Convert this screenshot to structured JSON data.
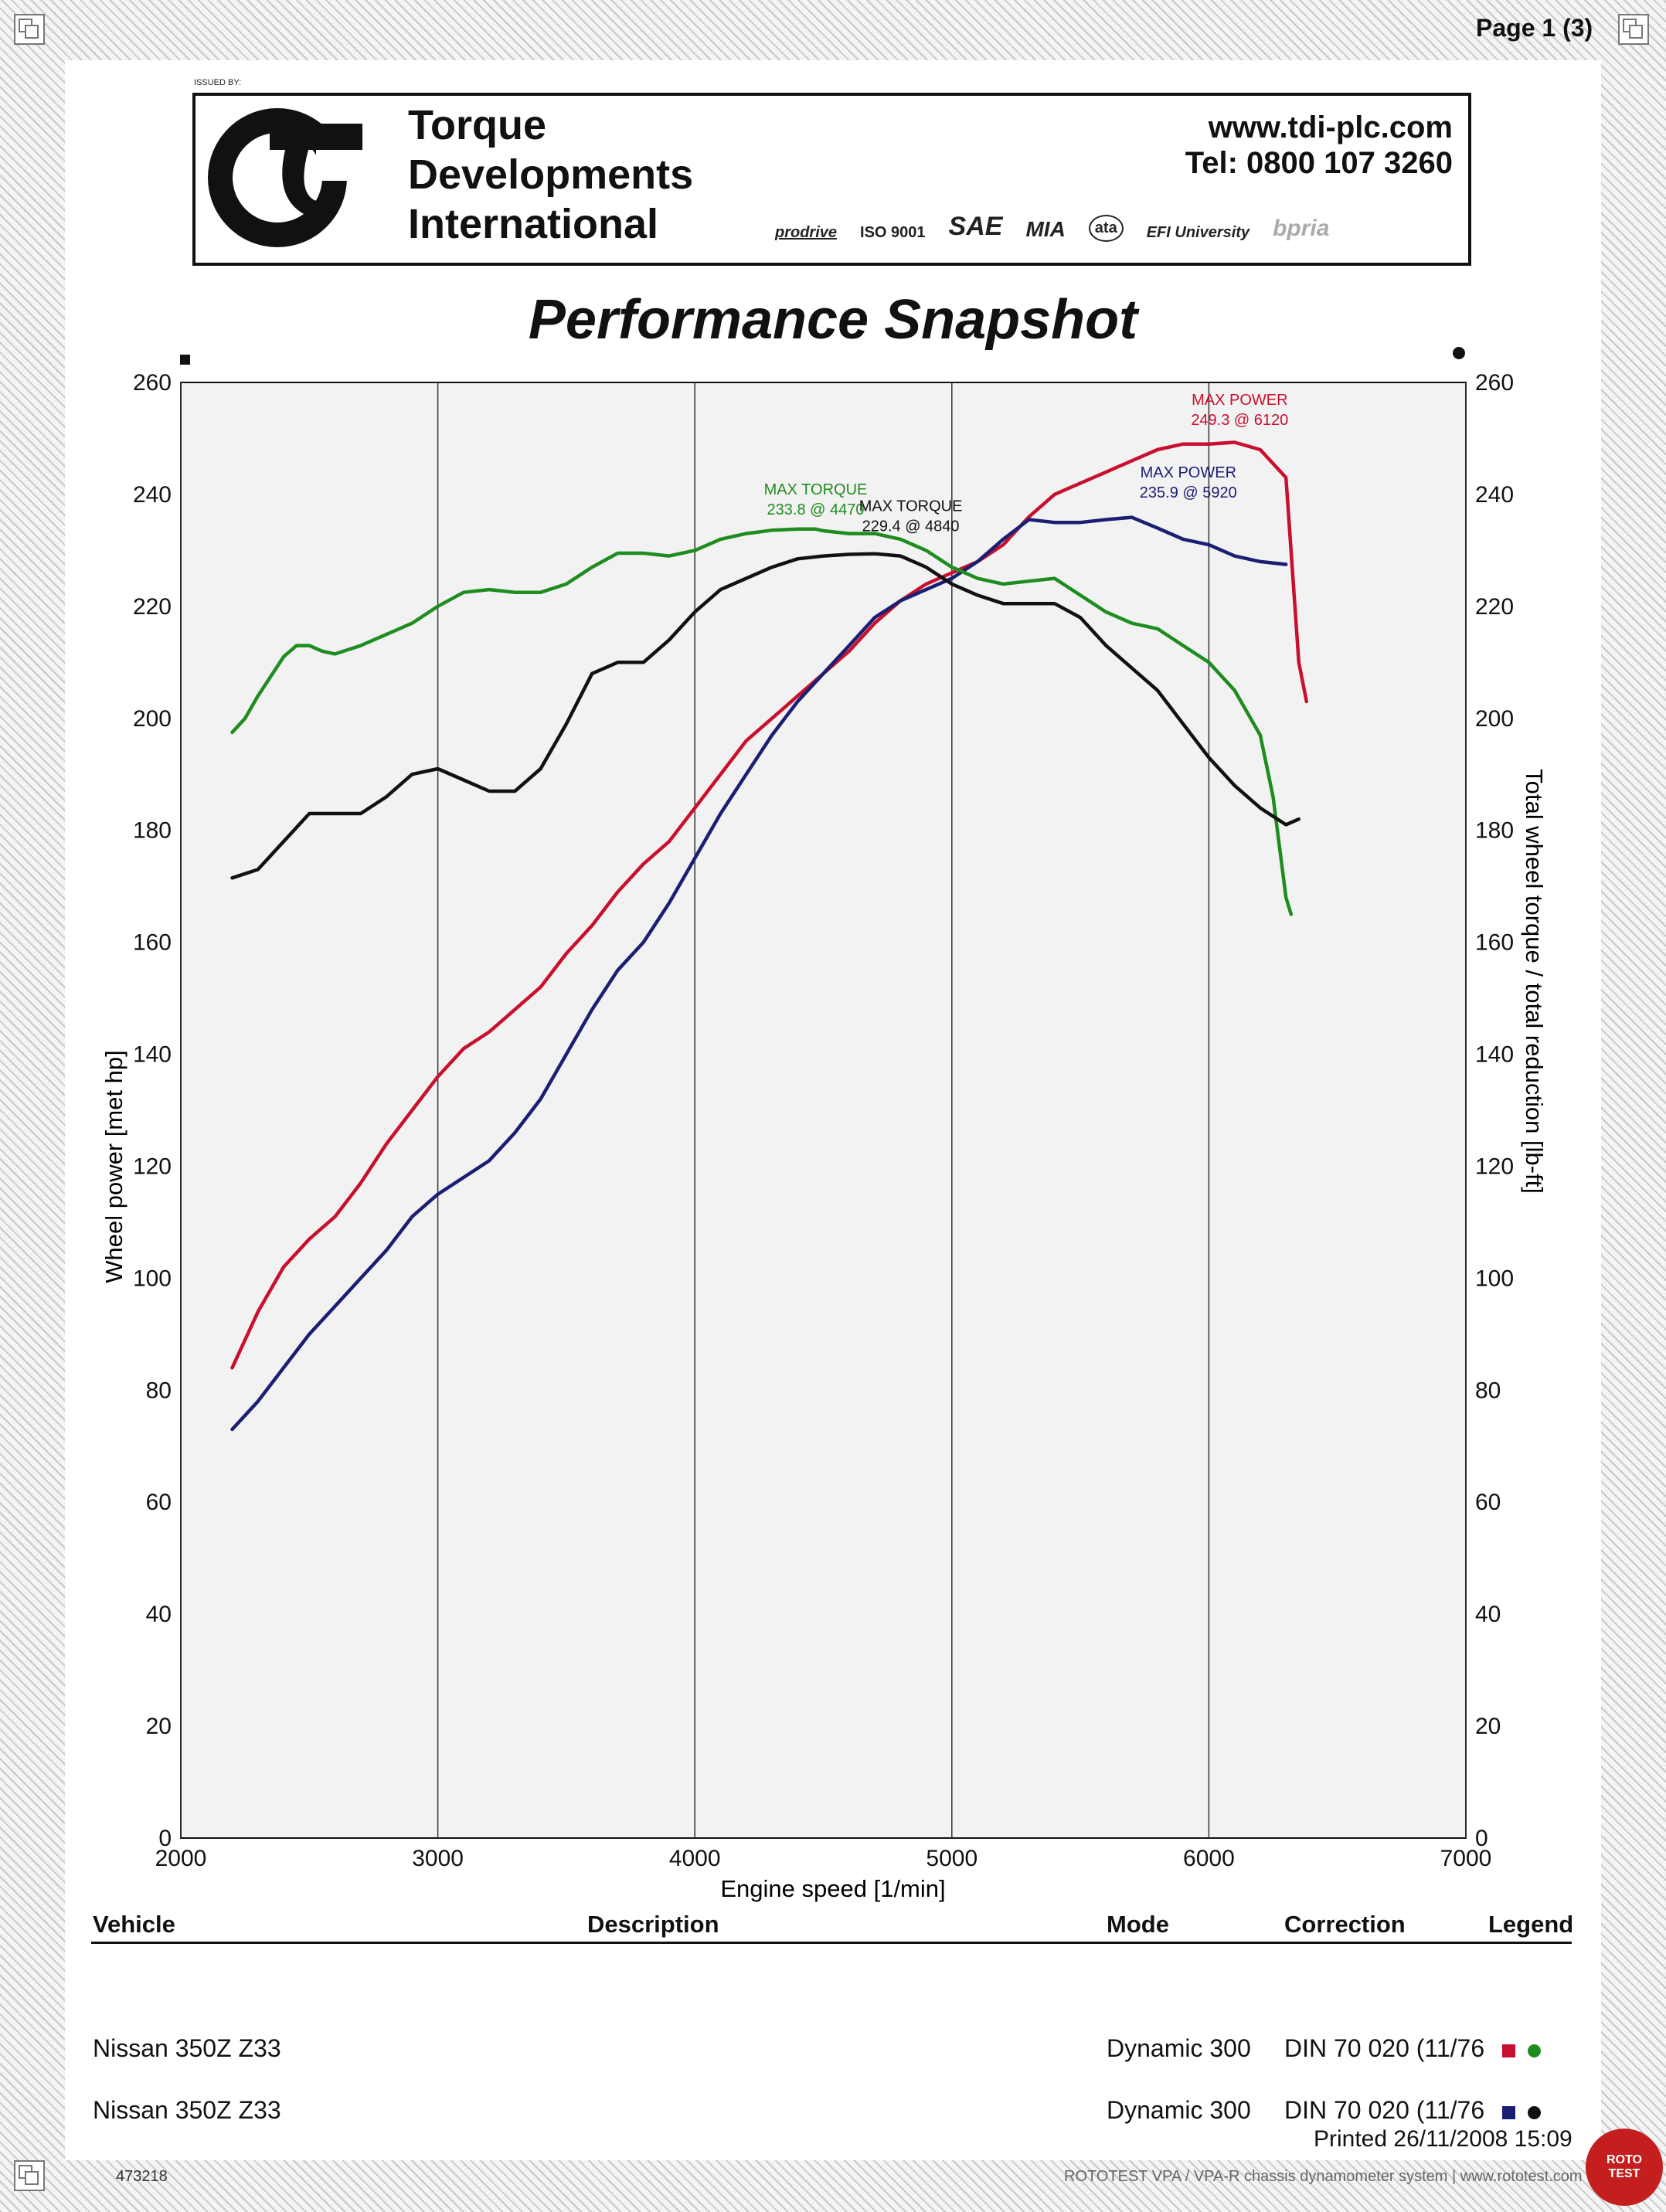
{
  "page_label": "Page 1 (3)",
  "header": {
    "issued_by": "ISSUED BY:",
    "company_lines": [
      "Torque",
      "Developments",
      "International"
    ],
    "website": "www.tdi-plc.com",
    "phone": "Tel: 0800 107 3260",
    "certifications": [
      "prodrive",
      "ISO 9001",
      "SAE",
      "MIA",
      "ata",
      "EFI University",
      "bpria"
    ]
  },
  "title": "Performance Snapshot",
  "colors": {
    "red": "#c8102e",
    "navy": "#1a1f73",
    "green": "#1e8c1e",
    "black": "#111111"
  },
  "chart_data": {
    "type": "line",
    "title": "Performance Snapshot",
    "xlabel": "Engine speed [1/min]",
    "ylabel_left": "Wheel power [met hp]",
    "ylabel_right": "Total wheel torque / total reduction [lb-ft]",
    "xlim": [
      2000,
      7000
    ],
    "ylim": [
      0,
      260
    ],
    "x_ticks": [
      "2000",
      "3000",
      "4000",
      "5000",
      "6000",
      "7000"
    ],
    "y_ticks": [
      "0",
      "20",
      "40",
      "60",
      "80",
      "100",
      "120",
      "140",
      "160",
      "180",
      "200",
      "220",
      "240",
      "260"
    ],
    "grid": true,
    "series": [
      {
        "color": "#c8102e",
        "points": [
          [
            2200,
            84
          ],
          [
            2300,
            94
          ],
          [
            2400,
            102
          ],
          [
            2500,
            107
          ],
          [
            2600,
            111
          ],
          [
            2700,
            117
          ],
          [
            2800,
            124
          ],
          [
            2900,
            130
          ],
          [
            3000,
            136
          ],
          [
            3100,
            141
          ],
          [
            3200,
            144
          ],
          [
            3300,
            148
          ],
          [
            3400,
            152
          ],
          [
            3500,
            158
          ],
          [
            3600,
            163
          ],
          [
            3700,
            169
          ],
          [
            3800,
            174
          ],
          [
            3900,
            178
          ],
          [
            4000,
            184
          ],
          [
            4100,
            190
          ],
          [
            4200,
            196
          ],
          [
            4300,
            200
          ],
          [
            4400,
            204
          ],
          [
            4500,
            208
          ],
          [
            4600,
            212
          ],
          [
            4700,
            217
          ],
          [
            4800,
            221
          ],
          [
            4900,
            224
          ],
          [
            5000,
            226
          ],
          [
            5100,
            228
          ],
          [
            5200,
            231
          ],
          [
            5300,
            236
          ],
          [
            5400,
            240
          ],
          [
            5500,
            242
          ],
          [
            5600,
            244
          ],
          [
            5700,
            246
          ],
          [
            5800,
            248
          ],
          [
            5900,
            249
          ],
          [
            6000,
            249
          ],
          [
            6100,
            249.3
          ],
          [
            6200,
            248
          ],
          [
            6300,
            243
          ],
          [
            6350,
            210
          ],
          [
            6380,
            203
          ]
        ]
      },
      {
        "color": "#1a1f73",
        "points": [
          [
            2200,
            73
          ],
          [
            2300,
            78
          ],
          [
            2400,
            84
          ],
          [
            2500,
            90
          ],
          [
            2600,
            95
          ],
          [
            2700,
            100
          ],
          [
            2800,
            105
          ],
          [
            2900,
            111
          ],
          [
            3000,
            115
          ],
          [
            3100,
            118
          ],
          [
            3200,
            121
          ],
          [
            3300,
            126
          ],
          [
            3400,
            132
          ],
          [
            3500,
            140
          ],
          [
            3600,
            148
          ],
          [
            3700,
            155
          ],
          [
            3800,
            160
          ],
          [
            3900,
            167
          ],
          [
            4000,
            175
          ],
          [
            4100,
            183
          ],
          [
            4200,
            190
          ],
          [
            4300,
            197
          ],
          [
            4400,
            203
          ],
          [
            4500,
            208
          ],
          [
            4600,
            213
          ],
          [
            4700,
            218
          ],
          [
            4800,
            221
          ],
          [
            4900,
            223
          ],
          [
            5000,
            225
          ],
          [
            5100,
            228
          ],
          [
            5200,
            232
          ],
          [
            5300,
            235.5
          ],
          [
            5400,
            235
          ],
          [
            5500,
            235
          ],
          [
            5600,
            235.5
          ],
          [
            5700,
            235.9
          ],
          [
            5800,
            234
          ],
          [
            5900,
            232
          ],
          [
            6000,
            231
          ],
          [
            6100,
            229
          ],
          [
            6200,
            228
          ],
          [
            6300,
            227.5
          ]
        ]
      },
      {
        "color": "#1e8c1e",
        "points": [
          [
            2200,
            197.5
          ],
          [
            2250,
            200
          ],
          [
            2300,
            204
          ],
          [
            2400,
            211
          ],
          [
            2450,
            213
          ],
          [
            2500,
            213
          ],
          [
            2550,
            212
          ],
          [
            2600,
            211.5
          ],
          [
            2700,
            213
          ],
          [
            2800,
            215
          ],
          [
            2900,
            217
          ],
          [
            3000,
            220
          ],
          [
            3100,
            222.5
          ],
          [
            3200,
            223
          ],
          [
            3300,
            222.5
          ],
          [
            3400,
            222.5
          ],
          [
            3500,
            224
          ],
          [
            3600,
            227
          ],
          [
            3700,
            229.5
          ],
          [
            3800,
            229.5
          ],
          [
            3900,
            229
          ],
          [
            4000,
            230
          ],
          [
            4100,
            232
          ],
          [
            4200,
            233
          ],
          [
            4300,
            233.6
          ],
          [
            4400,
            233.8
          ],
          [
            4470,
            233.8
          ],
          [
            4500,
            233.5
          ],
          [
            4600,
            233
          ],
          [
            4700,
            233
          ],
          [
            4800,
            232
          ],
          [
            4900,
            230
          ],
          [
            5000,
            227
          ],
          [
            5100,
            225
          ],
          [
            5200,
            224
          ],
          [
            5300,
            224.5
          ],
          [
            5400,
            225
          ],
          [
            5500,
            222
          ],
          [
            5600,
            219
          ],
          [
            5700,
            217
          ],
          [
            5800,
            216
          ],
          [
            5900,
            213
          ],
          [
            6000,
            210
          ],
          [
            6100,
            205
          ],
          [
            6200,
            197
          ],
          [
            6250,
            186
          ],
          [
            6300,
            168
          ],
          [
            6320,
            165
          ]
        ]
      },
      {
        "color": "#111111",
        "points": [
          [
            2200,
            171.5
          ],
          [
            2300,
            173
          ],
          [
            2400,
            178
          ],
          [
            2500,
            183
          ],
          [
            2600,
            183
          ],
          [
            2700,
            183
          ],
          [
            2800,
            186
          ],
          [
            2900,
            190
          ],
          [
            3000,
            191
          ],
          [
            3100,
            189
          ],
          [
            3200,
            187
          ],
          [
            3300,
            187
          ],
          [
            3400,
            191
          ],
          [
            3500,
            199
          ],
          [
            3600,
            208
          ],
          [
            3700,
            210
          ],
          [
            3800,
            210
          ],
          [
            3900,
            214
          ],
          [
            4000,
            219
          ],
          [
            4100,
            223
          ],
          [
            4200,
            225
          ],
          [
            4300,
            227
          ],
          [
            4400,
            228.5
          ],
          [
            4500,
            229
          ],
          [
            4600,
            229.3
          ],
          [
            4700,
            229.4
          ],
          [
            4800,
            229
          ],
          [
            4900,
            227
          ],
          [
            5000,
            224
          ],
          [
            5100,
            222
          ],
          [
            5200,
            220.5
          ],
          [
            5300,
            220.5
          ],
          [
            5400,
            220.5
          ],
          [
            5500,
            218
          ],
          [
            5600,
            213
          ],
          [
            5700,
            209
          ],
          [
            5800,
            205
          ],
          [
            5900,
            199
          ],
          [
            6000,
            193
          ],
          [
            6100,
            188
          ],
          [
            6200,
            184
          ],
          [
            6300,
            181
          ],
          [
            6350,
            182
          ]
        ]
      }
    ],
    "annotations": [
      {
        "label": "MAX POWER",
        "value": "249.3 @ 6120",
        "color": "#c8102e",
        "x": 6120,
        "y": 256
      },
      {
        "label": "MAX POWER",
        "value": "235.9 @ 5920",
        "color": "#1a1f73",
        "x": 5920,
        "y": 243
      },
      {
        "label": "MAX TORQUE",
        "value": "233.8 @ 4470",
        "color": "#1e8c1e",
        "x": 4470,
        "y": 240
      },
      {
        "label": "MAX TORQUE",
        "value": "229.4 @ 4840",
        "color": "#111111",
        "x": 4840,
        "y": 237
      }
    ]
  },
  "table": {
    "headers": {
      "vehicle": "Vehicle",
      "description": "Description",
      "mode": "Mode",
      "correction": "Correction",
      "legend": "Legend"
    },
    "rows": [
      {
        "vehicle": "Nissan 350Z Z33",
        "mode": "Dynamic 300",
        "correction": "DIN 70 020 (11/76",
        "legend_square": "#c8102e",
        "legend_dot": "#1e8c1e"
      },
      {
        "vehicle": "Nissan 350Z Z33",
        "mode": "Dynamic 300",
        "correction": "DIN 70 020 (11/76",
        "legend_square": "#1a1f73",
        "legend_dot": "#111111"
      }
    ]
  },
  "printed": "Printed 26/11/2008 15:09",
  "footer": {
    "id": "473218",
    "system": "ROTOTEST VPA / VPA-R chassis dynamometer system | www.rototest.com",
    "badge": [
      "ROTO",
      "TEST"
    ]
  }
}
